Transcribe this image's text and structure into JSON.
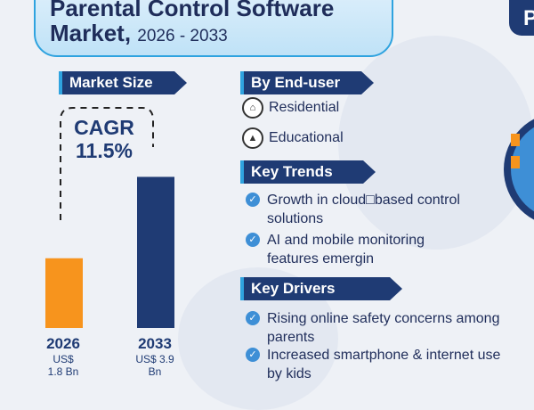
{
  "title": {
    "line1": "Parental Control Software",
    "line2_main": "Market,",
    "line2_sub": "2026 - 2033"
  },
  "market_size": {
    "heading": "Market Size",
    "cagr_label": "CAGR",
    "cagr_value": "11.5%"
  },
  "chart_data": {
    "type": "bar",
    "categories": [
      "2026",
      "2033"
    ],
    "values": [
      1.8,
      3.9
    ],
    "value_labels": [
      "US$ 1.8 Bn",
      "US$ 3.9 Bn"
    ],
    "colors": [
      "#f7941d",
      "#1f3b74"
    ],
    "ylim": [
      0,
      4.6
    ],
    "title": "Market Size",
    "xlabel": "",
    "ylabel": ""
  },
  "end_user": {
    "heading": "By End-user",
    "items": [
      {
        "label": "Residential",
        "icon": "house-icon"
      },
      {
        "label": "Educational",
        "icon": "graduation-cap-icon"
      }
    ]
  },
  "key_trends": {
    "heading": "Key Trends",
    "items": [
      {
        "line1": "Growth in cloud□based control",
        "line2": "solutions"
      },
      {
        "line1": "AI and mobile monitoring",
        "line2": "features emergin"
      }
    ]
  },
  "key_drivers": {
    "heading": "Key Drivers",
    "items": [
      {
        "line1": "Rising online safety concerns among",
        "line2": "parents"
      },
      {
        "line1": "Increased smartphone & internet use",
        "line2": "by kids"
      }
    ]
  },
  "right_panel": {
    "partial_title": "P"
  },
  "colors": {
    "navy": "#1f3b74",
    "orange": "#f7941d",
    "accent_blue": "#2fa3df",
    "check_blue": "#3e8fd6"
  }
}
